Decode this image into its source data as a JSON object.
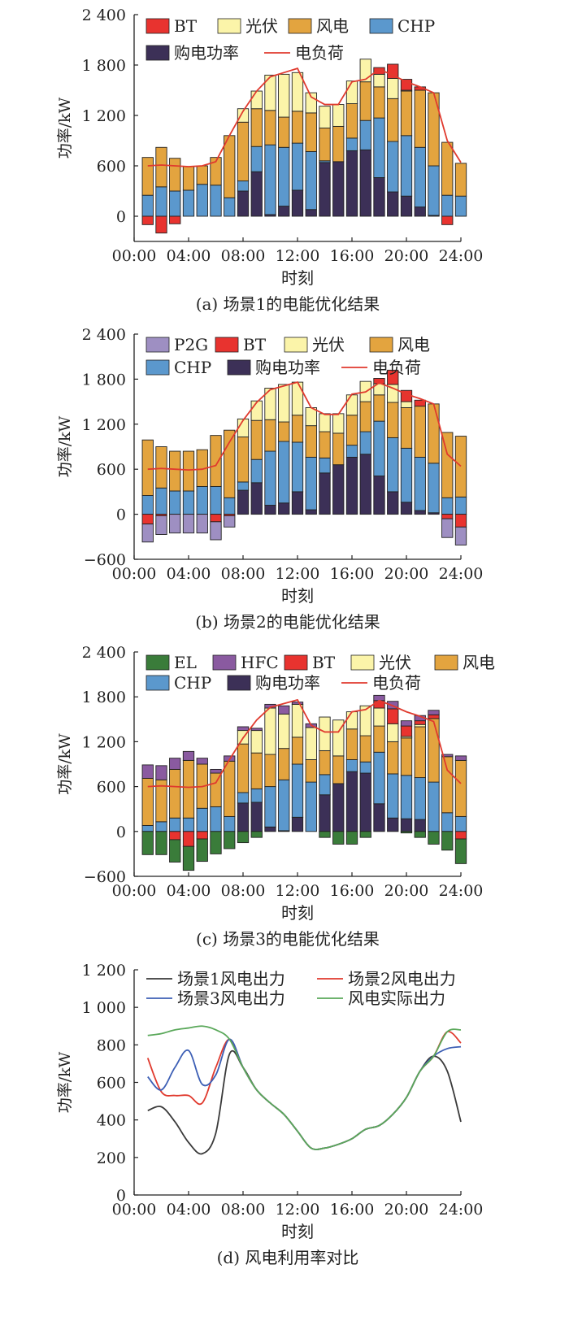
{
  "chart_data": [
    {
      "id": "a",
      "type": "stacked-bar+line",
      "caption": "(a) 场景1的电能优化结果",
      "xlabel": "时刻",
      "ylabel": "功率/kW",
      "ylim": [
        -300,
        2400
      ],
      "yticks": [
        0,
        600,
        1200,
        1800,
        2400
      ],
      "ytick_labels": [
        "0",
        "600",
        "1 200",
        "1 800",
        "2 400"
      ],
      "xticks": [
        0,
        4,
        8,
        12,
        16,
        20,
        24
      ],
      "xtick_labels": [
        "00:00",
        "04:00",
        "08:00",
        "12:00",
        "16:00",
        "20:00",
        "24:00"
      ],
      "hours": [
        1,
        2,
        3,
        4,
        5,
        6,
        7,
        8,
        9,
        10,
        11,
        12,
        13,
        14,
        15,
        16,
        17,
        18,
        19,
        20,
        21,
        22,
        23,
        24
      ],
      "series": [
        {
          "name": "购电功率",
          "key": "grid",
          "color": "#3c3057",
          "values": [
            0,
            0,
            0,
            0,
            0,
            0,
            0,
            300,
            530,
            20,
            120,
            310,
            80,
            640,
            650,
            780,
            790,
            460,
            290,
            240,
            110,
            10,
            0,
            0
          ]
        },
        {
          "name": "CHP",
          "key": "chp",
          "color": "#5b98cd",
          "values": [
            250,
            350,
            300,
            310,
            380,
            370,
            220,
            120,
            300,
            830,
            700,
            560,
            690,
            20,
            0,
            150,
            350,
            710,
            600,
            720,
            710,
            590,
            250,
            240
          ]
        },
        {
          "name": "风电",
          "key": "wind",
          "color": "#e3a43f",
          "values": [
            450,
            470,
            390,
            280,
            220,
            330,
            740,
            700,
            450,
            410,
            360,
            380,
            460,
            390,
            420,
            410,
            460,
            370,
            510,
            530,
            680,
            870,
            630,
            390
          ]
        },
        {
          "name": "光伏",
          "key": "pv",
          "color": "#fbf4a9",
          "values": [
            0,
            0,
            0,
            0,
            0,
            0,
            0,
            160,
            210,
            420,
            510,
            460,
            240,
            260,
            260,
            270,
            270,
            150,
            240,
            10,
            0,
            0,
            0,
            0
          ]
        },
        {
          "name": "BT",
          "key": "bt",
          "color": "#e8332f",
          "values": [
            -100,
            -200,
            -90,
            0,
            0,
            0,
            0,
            0,
            0,
            0,
            0,
            0,
            0,
            0,
            0,
            0,
            0,
            80,
            170,
            130,
            40,
            0,
            -100,
            0
          ]
        }
      ],
      "load": {
        "name": "电负荷",
        "color": "#e03a2e",
        "values": [
          600,
          610,
          600,
          590,
          600,
          650,
          960,
          1250,
          1490,
          1660,
          1710,
          1760,
          1420,
          1330,
          1330,
          1600,
          1630,
          1750,
          1680,
          1600,
          1540,
          1470,
          900,
          640
        ]
      },
      "legend": [
        {
          "name": "BT",
          "color": "#e8332f",
          "kind": "box"
        },
        {
          "name": "光伏",
          "color": "#fbf4a9",
          "kind": "box"
        },
        {
          "name": "风电",
          "color": "#e3a43f",
          "kind": "box"
        },
        {
          "name": "CHP",
          "color": "#5b98cd",
          "kind": "box"
        },
        {
          "name": "购电功率",
          "color": "#3c3057",
          "kind": "box"
        },
        {
          "name": "电负荷",
          "color": "#e03a2e",
          "kind": "line"
        }
      ]
    },
    {
      "id": "b",
      "type": "stacked-bar+line",
      "caption": "(b) 场景2的电能优化结果",
      "xlabel": "时刻",
      "ylabel": "功率/kW",
      "ylim": [
        -600,
        2400
      ],
      "yticks": [
        -600,
        0,
        600,
        1200,
        1800,
        2400
      ],
      "ytick_labels": [
        "−600",
        "0",
        "600",
        "1 200",
        "1 800",
        "2 400"
      ],
      "xticks": [
        0,
        4,
        8,
        12,
        16,
        20,
        24
      ],
      "xtick_labels": [
        "00:00",
        "04:00",
        "08:00",
        "12:00",
        "16:00",
        "20:00",
        "24:00"
      ],
      "hours": [
        1,
        2,
        3,
        4,
        5,
        6,
        7,
        8,
        9,
        10,
        11,
        12,
        13,
        14,
        15,
        16,
        17,
        18,
        19,
        20,
        21,
        22,
        23,
        24
      ],
      "series": [
        {
          "name": "购电功率",
          "key": "grid",
          "color": "#3c3057",
          "values": [
            0,
            0,
            0,
            0,
            0,
            0,
            0,
            320,
            420,
            120,
            150,
            300,
            60,
            550,
            660,
            760,
            800,
            510,
            300,
            160,
            50,
            20,
            0,
            0
          ]
        },
        {
          "name": "CHP",
          "key": "chp",
          "color": "#5b98cd",
          "values": [
            250,
            350,
            310,
            310,
            370,
            370,
            220,
            110,
            310,
            720,
            820,
            660,
            700,
            200,
            0,
            160,
            300,
            730,
            720,
            720,
            710,
            660,
            220,
            230
          ]
        },
        {
          "name": "风电",
          "key": "wind",
          "color": "#e3a43f",
          "values": [
            740,
            550,
            530,
            530,
            490,
            680,
            900,
            600,
            520,
            420,
            260,
            360,
            420,
            350,
            420,
            400,
            400,
            350,
            470,
            540,
            680,
            790,
            870,
            810
          ]
        },
        {
          "name": "光伏",
          "key": "pv",
          "color": "#fbf4a9",
          "values": [
            0,
            0,
            0,
            0,
            0,
            0,
            0,
            240,
            260,
            420,
            500,
            440,
            240,
            240,
            260,
            270,
            270,
            150,
            240,
            80,
            0,
            0,
            0,
            0
          ]
        },
        {
          "name": "BT",
          "key": "bt",
          "color": "#e8332f",
          "values": [
            -130,
            -20,
            0,
            0,
            0,
            -100,
            -20,
            0,
            0,
            0,
            0,
            0,
            0,
            0,
            0,
            0,
            0,
            70,
            190,
            150,
            80,
            0,
            -60,
            -170
          ]
        },
        {
          "name": "P2G",
          "key": "p2g",
          "color": "#9e8fc2",
          "values": [
            -240,
            -250,
            -250,
            -250,
            -250,
            -240,
            -150,
            0,
            0,
            0,
            0,
            0,
            0,
            0,
            0,
            0,
            0,
            0,
            0,
            0,
            0,
            0,
            -250,
            -240
          ]
        }
      ],
      "load": {
        "name": "电负荷",
        "color": "#e03a2e",
        "values": [
          600,
          610,
          600,
          590,
          600,
          650,
          960,
          1250,
          1490,
          1660,
          1710,
          1760,
          1420,
          1330,
          1330,
          1600,
          1630,
          1750,
          1680,
          1600,
          1540,
          1470,
          800,
          640
        ]
      },
      "legend": [
        {
          "name": "P2G",
          "color": "#9e8fc2",
          "kind": "box"
        },
        {
          "name": "BT",
          "color": "#e8332f",
          "kind": "box"
        },
        {
          "name": "光伏",
          "color": "#fbf4a9",
          "kind": "box"
        },
        {
          "name": "风电",
          "color": "#e3a43f",
          "kind": "box"
        },
        {
          "name": "CHP",
          "color": "#5b98cd",
          "kind": "box"
        },
        {
          "name": "购电功率",
          "color": "#3c3057",
          "kind": "box"
        },
        {
          "name": "电负荷",
          "color": "#e03a2e",
          "kind": "line"
        }
      ]
    },
    {
      "id": "c",
      "type": "stacked-bar+line",
      "caption": "(c) 场景3的电能优化结果",
      "xlabel": "时刻",
      "ylabel": "功率/kW",
      "ylim": [
        -600,
        2400
      ],
      "yticks": [
        -600,
        0,
        600,
        1200,
        1800,
        2400
      ],
      "ytick_labels": [
        "−600",
        "0",
        "600",
        "1 200",
        "1 800",
        "2 400"
      ],
      "xticks": [
        0,
        4,
        8,
        12,
        16,
        20,
        24
      ],
      "xtick_labels": [
        "00:00",
        "04:00",
        "08:00",
        "12:00",
        "16:00",
        "20:00",
        "24:00"
      ],
      "hours": [
        1,
        2,
        3,
        4,
        5,
        6,
        7,
        8,
        9,
        10,
        11,
        12,
        13,
        14,
        15,
        16,
        17,
        18,
        19,
        20,
        21,
        22,
        23,
        24
      ],
      "series": [
        {
          "name": "购电功率",
          "key": "grid",
          "color": "#3c3057",
          "values": [
            0,
            0,
            0,
            0,
            0,
            0,
            0,
            380,
            390,
            60,
            10,
            190,
            0,
            490,
            640,
            800,
            780,
            370,
            180,
            170,
            160,
            0,
            0,
            0
          ]
        },
        {
          "name": "CHP",
          "key": "chp",
          "color": "#5b98cd",
          "values": [
            80,
            130,
            180,
            180,
            310,
            330,
            200,
            140,
            180,
            540,
            680,
            710,
            660,
            270,
            0,
            160,
            150,
            690,
            590,
            580,
            560,
            660,
            250,
            200
          ]
        },
        {
          "name": "风电",
          "key": "wind",
          "color": "#e3a43f",
          "values": [
            630,
            560,
            650,
            770,
            590,
            450,
            740,
            650,
            480,
            430,
            420,
            360,
            300,
            320,
            370,
            410,
            350,
            350,
            430,
            500,
            680,
            850,
            750,
            750
          ]
        },
        {
          "name": "光伏",
          "key": "pv",
          "color": "#fbf4a9",
          "values": [
            0,
            0,
            0,
            0,
            0,
            0,
            0,
            180,
            300,
            620,
            460,
            440,
            430,
            450,
            480,
            230,
            400,
            240,
            240,
            20,
            30,
            0,
            0,
            0
          ]
        },
        {
          "name": "BT",
          "key": "bt",
          "color": "#e8332f",
          "values": [
            0,
            0,
            -110,
            -200,
            -100,
            0,
            0,
            0,
            0,
            0,
            0,
            0,
            0,
            0,
            0,
            0,
            0,
            100,
            200,
            140,
            50,
            50,
            0,
            -100
          ]
        },
        {
          "name": "HFC",
          "key": "hfc",
          "color": "#8a5aa0",
          "values": [
            180,
            190,
            150,
            120,
            80,
            50,
            70,
            50,
            30,
            50,
            110,
            30,
            50,
            0,
            0,
            0,
            0,
            70,
            100,
            70,
            70,
            60,
            30,
            60
          ]
        },
        {
          "name": "EL",
          "key": "el",
          "color": "#3a7c3a",
          "values": [
            -310,
            -310,
            -300,
            -320,
            -300,
            -300,
            -230,
            -150,
            -80,
            0,
            0,
            0,
            0,
            -80,
            -170,
            -170,
            -80,
            0,
            0,
            -20,
            -80,
            -170,
            -250,
            -330
          ]
        }
      ],
      "load": {
        "name": "电负荷",
        "color": "#e03a2e",
        "values": [
          600,
          610,
          600,
          590,
          600,
          650,
          960,
          1250,
          1490,
          1660,
          1710,
          1760,
          1420,
          1330,
          1330,
          1600,
          1630,
          1750,
          1680,
          1600,
          1540,
          1470,
          820,
          640
        ]
      },
      "legend": [
        {
          "name": "EL",
          "color": "#3a7c3a",
          "kind": "box"
        },
        {
          "name": "HFC",
          "color": "#8a5aa0",
          "kind": "box"
        },
        {
          "name": "BT",
          "color": "#e8332f",
          "kind": "box"
        },
        {
          "name": "光伏",
          "color": "#fbf4a9",
          "kind": "box"
        },
        {
          "name": "风电",
          "color": "#e3a43f",
          "kind": "box"
        },
        {
          "name": "CHP",
          "color": "#5b98cd",
          "kind": "box"
        },
        {
          "name": "购电功率",
          "color": "#3c3057",
          "kind": "box"
        },
        {
          "name": "电负荷",
          "color": "#e03a2e",
          "kind": "line"
        }
      ]
    },
    {
      "id": "d",
      "type": "line",
      "caption": "(d) 风电利用率对比",
      "xlabel": "时刻",
      "ylabel": "功率/kW",
      "ylim": [
        0,
        1200
      ],
      "yticks": [
        0,
        200,
        400,
        600,
        800,
        1000,
        1200
      ],
      "ytick_labels": [
        "0",
        "200",
        "400",
        "600",
        "800",
        "1 000",
        "1 200"
      ],
      "xticks": [
        0,
        4,
        8,
        12,
        16,
        20,
        24
      ],
      "xtick_labels": [
        "00:00",
        "04:00",
        "08:00",
        "12:00",
        "16:00",
        "20:00",
        "24:00"
      ],
      "x": [
        1,
        2,
        3,
        4,
        5,
        6,
        7,
        8,
        9,
        10,
        11,
        12,
        13,
        14,
        15,
        16,
        17,
        18,
        19,
        20,
        21,
        22,
        23,
        24
      ],
      "series": [
        {
          "name": "场景1风电出力",
          "color": "#3a3a3a",
          "values": [
            450,
            470,
            390,
            280,
            220,
            330,
            750,
            680,
            560,
            490,
            430,
            340,
            250,
            250,
            270,
            300,
            350,
            370,
            430,
            520,
            660,
            740,
            660,
            390
          ]
        },
        {
          "name": "场景2风电出力",
          "color": "#e03a2e",
          "values": [
            730,
            550,
            530,
            530,
            490,
            680,
            830,
            680,
            560,
            490,
            430,
            340,
            250,
            250,
            270,
            300,
            350,
            370,
            430,
            520,
            660,
            740,
            870,
            810
          ]
        },
        {
          "name": "场景3风电出力",
          "color": "#3d5fb5",
          "values": [
            630,
            560,
            680,
            770,
            590,
            640,
            830,
            680,
            560,
            490,
            430,
            340,
            250,
            250,
            270,
            300,
            350,
            370,
            430,
            520,
            660,
            740,
            780,
            790
          ]
        },
        {
          "name": "风电实际出力",
          "color": "#5aa85a",
          "values": [
            850,
            860,
            880,
            890,
            900,
            880,
            830,
            680,
            560,
            490,
            430,
            340,
            250,
            250,
            270,
            300,
            350,
            370,
            430,
            520,
            660,
            740,
            870,
            880
          ]
        }
      ],
      "legend": [
        {
          "name": "场景1风电出力",
          "color": "#3a3a3a",
          "kind": "line"
        },
        {
          "name": "场景2风电出力",
          "color": "#e03a2e",
          "kind": "line"
        },
        {
          "name": "场景3风电出力",
          "color": "#3d5fb5",
          "kind": "line"
        },
        {
          "name": "风电实际出力",
          "color": "#5aa85a",
          "kind": "line"
        }
      ]
    }
  ]
}
